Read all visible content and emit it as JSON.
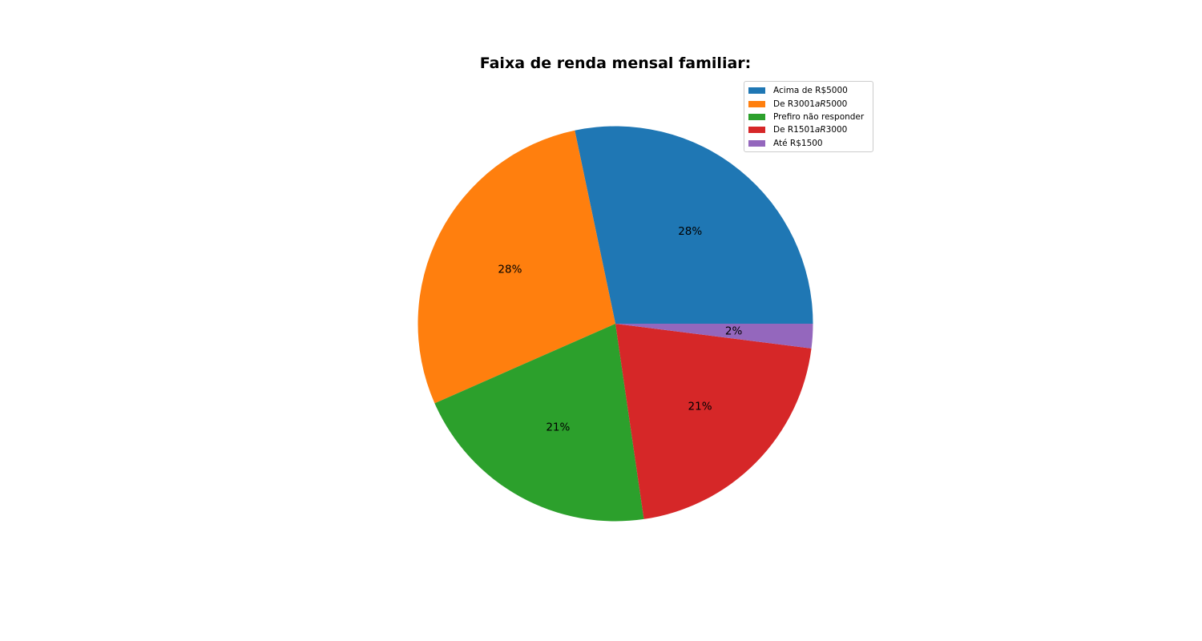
{
  "chart_data": {
    "type": "pie",
    "title": "Faixa de renda mensal familiar:",
    "categories": [
      "Acima de R$5000",
      "De R3001aR5000",
      "Prefiro não responder",
      "De R1501aR3000",
      "Até R$1500"
    ],
    "values": [
      28.3,
      28.3,
      20.7,
      20.7,
      2.0
    ],
    "value_labels": [
      "28%",
      "28%",
      "21%",
      "21%",
      "2%"
    ],
    "colors": [
      "#1f77b4",
      "#ff7f0e",
      "#2ca02c",
      "#d62728",
      "#9467bd"
    ],
    "start_angle_deg": 0,
    "direction": "counterclockwise",
    "legend_position": "top-right",
    "legend_labels": [
      {
        "before": "Acima de R$5000",
        "math": "",
        "after": ""
      },
      {
        "before": "De R3001",
        "math": "aR",
        "after": "5000"
      },
      {
        "before": "Prefiro não responder",
        "math": "",
        "after": ""
      },
      {
        "before": "De R1501",
        "math": "aR",
        "after": "3000"
      },
      {
        "before": "Até R$1500",
        "math": "",
        "after": ""
      }
    ]
  }
}
